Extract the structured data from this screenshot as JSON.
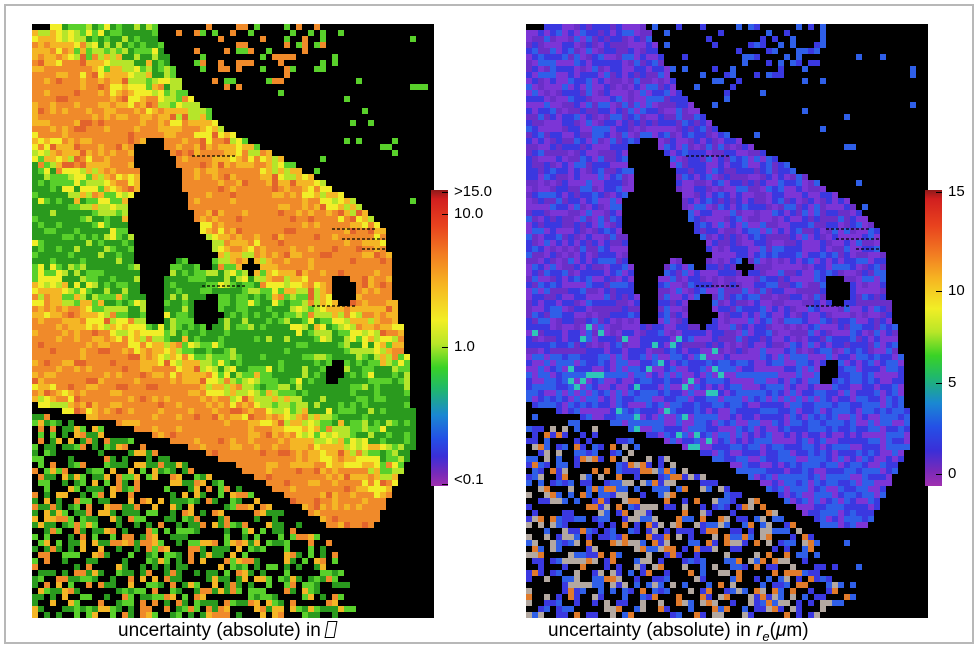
{
  "left_panel": {
    "caption": "uncertainty (absolute) in",
    "caption_symbol_icon": "tofu-box-glyph",
    "colorbar": {
      "labels": [
        ">15.0",
        "10.0",
        "1.0",
        "<0.1"
      ]
    },
    "palette": [
      "#000000",
      "#2a9a1e",
      "#59d02b",
      "#b6e52a",
      "#f1ee28",
      "#f4b625",
      "#f08a2a",
      "#e2632c",
      "#c9472a"
    ]
  },
  "right_panel": {
    "caption_prefix": "uncertainty (absolute) in ",
    "caption_var": "r",
    "caption_sub": "e",
    "caption_unit_open": "(",
    "caption_mu": "μ",
    "caption_unit_rest": "m)",
    "colorbar": {
      "labels": [
        "15",
        "10",
        "5",
        "0"
      ]
    },
    "palette": [
      "#000000",
      "#6a2fc8",
      "#7c35d6",
      "#3a38e0",
      "#2f5fe8",
      "#2a86e0",
      "#2fc6b8",
      "#b3a8a0",
      "#e07a2a",
      "#d24a1c"
    ]
  }
}
